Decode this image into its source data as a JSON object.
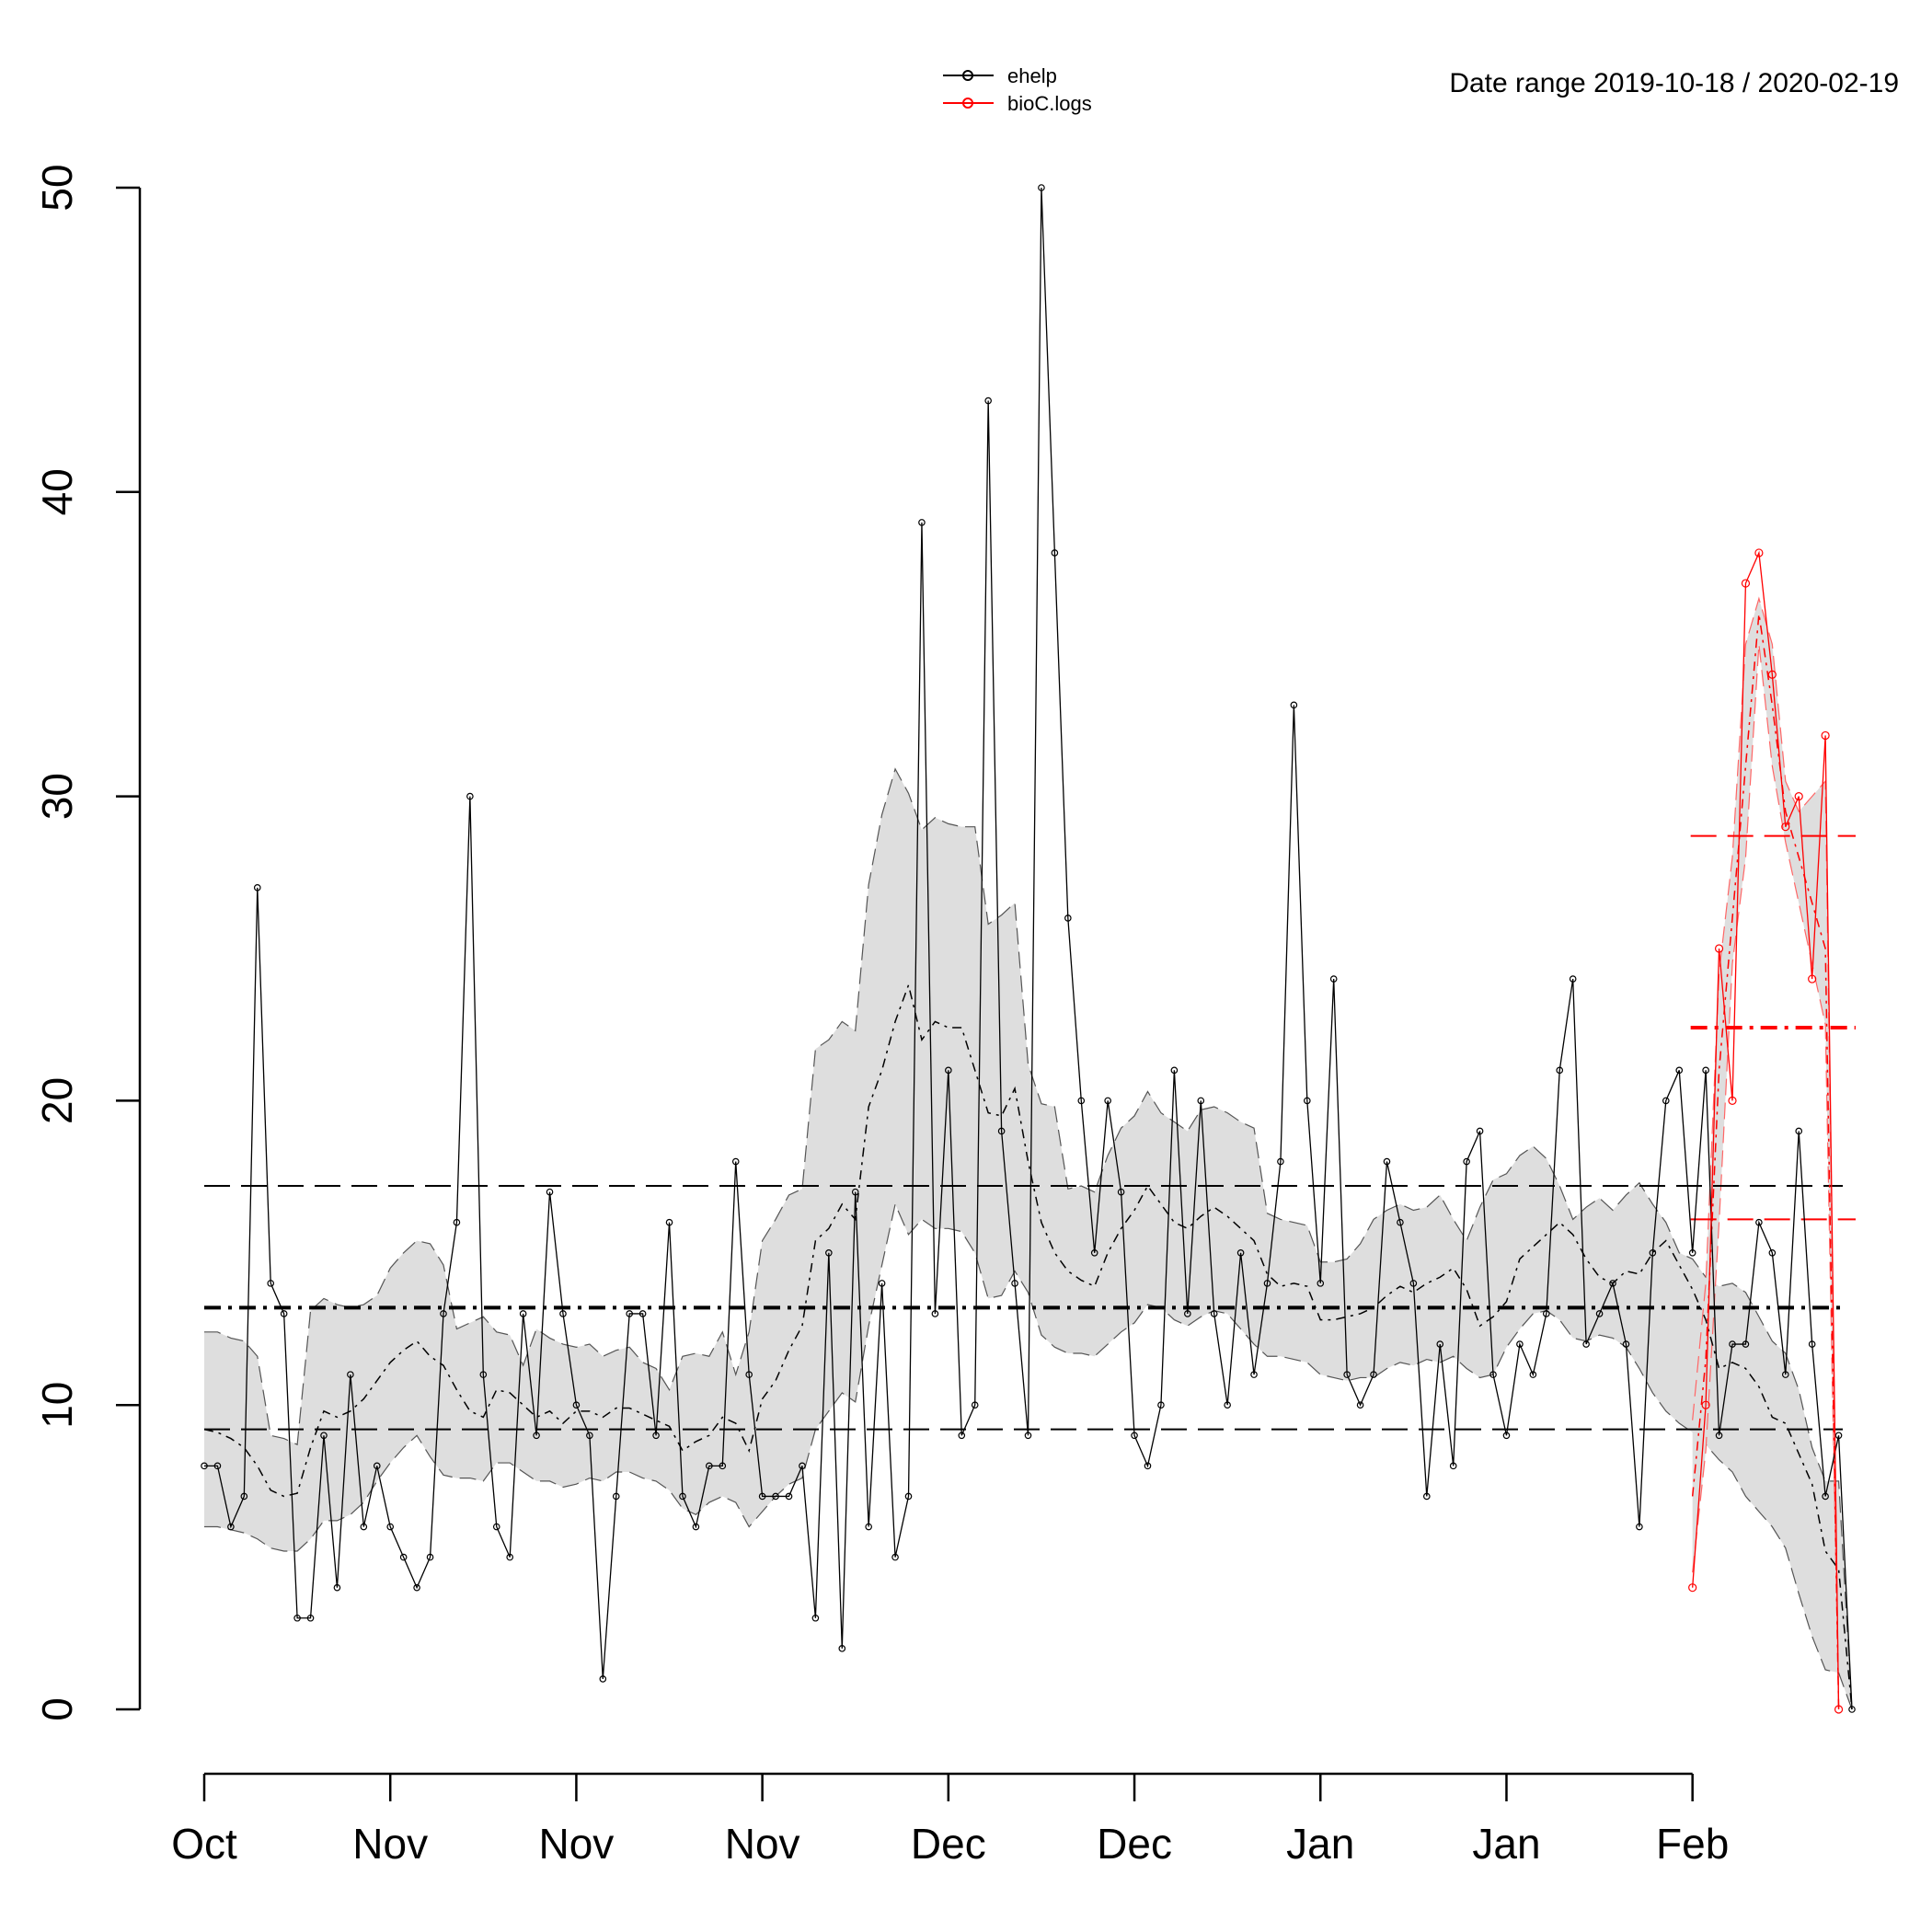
{
  "header": {
    "date_range_label": "Date range  2019-10-18 / 2020-02-19"
  },
  "legend": {
    "placement": "top-center",
    "items": [
      {
        "label": "ehelp",
        "color": "#000000"
      },
      {
        "label": "bioC.logs",
        "color": "#ff0000"
      }
    ]
  },
  "chart_data": {
    "type": "line",
    "title": "",
    "xlabel": "",
    "ylabel": "",
    "ylim": [
      0,
      50
    ],
    "yticks": [
      0,
      10,
      20,
      30,
      40,
      50
    ],
    "x_start": "2019-10-18",
    "x_end": "2020-02-19",
    "xticks": [
      {
        "label": "Oct",
        "date": "2019-10-18"
      },
      {
        "label": "Nov",
        "date": "2019-11-01"
      },
      {
        "label": "Nov",
        "date": "2019-11-15"
      },
      {
        "label": "Nov",
        "date": "2019-11-29"
      },
      {
        "label": "Dec",
        "date": "2019-12-13"
      },
      {
        "label": "Dec",
        "date": "2019-12-27"
      },
      {
        "label": "Jan",
        "date": "2020-01-10"
      },
      {
        "label": "Jan",
        "date": "2020-01-24"
      },
      {
        "label": "Feb",
        "date": "2020-02-07"
      }
    ],
    "grid": false,
    "series": [
      {
        "name": "ehelp",
        "color": "#000000",
        "start_date": "2019-10-18",
        "values": [
          8,
          8,
          6,
          7,
          27,
          14,
          13,
          3,
          3,
          9,
          4,
          11,
          6,
          8,
          6,
          5,
          4,
          5,
          13,
          16,
          30,
          11,
          6,
          5,
          13,
          9,
          17,
          13,
          10,
          9,
          1,
          7,
          13,
          13,
          9,
          16,
          7,
          6,
          8,
          8,
          18,
          11,
          7,
          7,
          7,
          8,
          3,
          15,
          2,
          17,
          6,
          14,
          5,
          7,
          39,
          13,
          21,
          9,
          10,
          43,
          19,
          14,
          9,
          50,
          38,
          26,
          20,
          15,
          20,
          17,
          9,
          8,
          10,
          21,
          13,
          20,
          13,
          10,
          15,
          11,
          14,
          18,
          33,
          20,
          14,
          24,
          11,
          10,
          11,
          18,
          16,
          14,
          7,
          12,
          8,
          18,
          19,
          11,
          9,
          12,
          11,
          13,
          21,
          24,
          12,
          13,
          14,
          12,
          6,
          15,
          20,
          21,
          15,
          21,
          9,
          12,
          12,
          16,
          15,
          11,
          19,
          12,
          7,
          9,
          0
        ],
        "rolling_mean_approx": [
          9.2,
          9.1,
          8.9,
          8.6,
          8.0,
          7.2,
          7.0,
          7.1,
          8.6,
          9.8,
          9.6,
          9.8,
          10.2,
          10.8,
          11.4,
          11.8,
          12.1,
          11.6,
          11.3,
          10.5,
          9.8,
          9.6,
          10.5,
          10.4,
          10.0,
          9.6,
          9.8,
          9.4,
          9.8,
          9.8,
          9.6,
          9.9,
          9.9,
          9.7,
          9.5,
          9.3,
          8.5,
          8.8,
          9.0,
          9.6,
          9.4,
          8.5,
          10.2,
          10.8,
          11.8,
          12.6,
          15.4,
          15.8,
          16.6,
          16.1,
          19.8,
          21.0,
          22.6,
          23.8,
          22.0,
          22.6,
          22.4,
          22.4,
          21.0,
          19.6,
          19.5,
          20.4,
          18.0,
          16.0,
          15.0,
          14.4,
          14.1,
          13.9,
          15.0,
          15.8,
          16.4,
          17.2,
          16.6,
          16.0,
          15.8,
          16.2,
          16.5,
          16.2,
          15.8,
          15.4,
          14.3,
          13.9,
          14.0,
          13.9,
          12.8,
          12.8,
          12.9,
          13.0,
          13.2,
          13.6,
          13.9,
          13.7,
          14.0,
          14.2,
          14.5,
          13.8,
          12.6,
          12.9,
          13.4,
          14.8,
          15.2,
          15.6,
          16.0,
          15.6,
          14.8,
          14.2,
          14.0,
          14.4,
          14.3,
          15.0,
          15.4,
          14.6,
          13.8,
          12.8,
          11.2,
          11.4,
          11.2,
          10.6,
          9.6,
          9.4,
          8.4,
          7.4,
          5.2,
          4.6,
          0
        ],
        "band_upper_approx": [
          12.4,
          12.4,
          12.2,
          12.1,
          11.6,
          9.0,
          8.9,
          8.7,
          13.1,
          13.5,
          13.3,
          13.2,
          13.3,
          13.6,
          14.5,
          15.0,
          15.4,
          15.3,
          14.6,
          12.5,
          12.7,
          12.9,
          12.4,
          12.3,
          11.3,
          12.5,
          12.2,
          12.0,
          11.9,
          12.0,
          11.6,
          11.8,
          11.9,
          11.4,
          11.2,
          10.5,
          11.6,
          11.7,
          11.6,
          12.4,
          11.0,
          12.4,
          15.4,
          16.1,
          16.9,
          17.1,
          21.7,
          22.0,
          22.6,
          22.3,
          27.1,
          29.4,
          30.9,
          30.1,
          28.9,
          29.3,
          29.1,
          29.0,
          29.0,
          25.8,
          26.1,
          26.5,
          21.2,
          19.9,
          19.8,
          17.1,
          17.2,
          17.0,
          18.2,
          19.1,
          19.5,
          20.3,
          19.6,
          19.3,
          19.0,
          19.7,
          19.8,
          19.6,
          19.3,
          19.1,
          16.3,
          16.1,
          16.0,
          15.9,
          14.7,
          14.7,
          14.8,
          15.3,
          16.1,
          16.4,
          16.6,
          16.4,
          16.5,
          16.9,
          16.1,
          15.4,
          16.5,
          17.4,
          17.6,
          18.2,
          18.5,
          18.1,
          17.2,
          16.1,
          16.5,
          16.8,
          16.4,
          16.9,
          17.3,
          16.6,
          16.0,
          15.0,
          14.8,
          14.2,
          13.9,
          14.0,
          13.7,
          12.9,
          12.1,
          11.7,
          10.5,
          8.6,
          7.5,
          7.5,
          0
        ],
        "band_lower_approx": [
          6.0,
          6.0,
          5.9,
          5.8,
          5.6,
          5.3,
          5.2,
          5.2,
          5.6,
          6.2,
          6.2,
          6.4,
          6.8,
          7.5,
          8.1,
          8.6,
          9.0,
          8.3,
          7.7,
          7.6,
          7.6,
          7.5,
          8.1,
          8.1,
          7.8,
          7.5,
          7.5,
          7.3,
          7.4,
          7.6,
          7.5,
          7.8,
          7.8,
          7.6,
          7.5,
          7.2,
          6.6,
          6.4,
          6.8,
          7.0,
          6.8,
          6.0,
          6.5,
          7.0,
          7.4,
          7.6,
          9.2,
          9.8,
          10.4,
          10.1,
          12.6,
          14.6,
          16.6,
          15.6,
          16.1,
          15.8,
          15.8,
          15.7,
          15.0,
          13.5,
          13.6,
          14.4,
          13.7,
          12.3,
          11.9,
          11.7,
          11.7,
          11.6,
          12.0,
          12.4,
          12.7,
          13.3,
          13.2,
          12.8,
          12.6,
          12.9,
          13.1,
          13.0,
          12.5,
          12.0,
          11.6,
          11.6,
          11.5,
          11.4,
          11.0,
          10.9,
          10.8,
          10.9,
          10.9,
          11.2,
          11.4,
          11.3,
          11.5,
          11.4,
          11.6,
          11.2,
          10.9,
          11.0,
          11.9,
          12.5,
          13.0,
          13.1,
          12.8,
          12.2,
          12.1,
          12.3,
          12.2,
          11.9,
          11.2,
          10.4,
          9.8,
          9.4,
          9.1,
          8.7,
          8.2,
          7.8,
          7.0,
          6.5,
          6.0,
          5.3,
          3.8,
          2.4,
          1.3,
          1.2,
          0
        ],
        "overall_mean": 13.2,
        "band_upper_ref": 17.2,
        "band_lower_ref": 9.2
      },
      {
        "name": "bioC.logs",
        "color": "#ff0000",
        "start_date": "2020-02-07",
        "values": [
          4,
          10,
          25,
          20,
          37,
          38,
          34,
          29,
          30,
          24,
          32,
          0
        ],
        "rolling_mean_approx": [
          7.0,
          11.5,
          21.0,
          26.0,
          31.0,
          36.0,
          33.0,
          29.5,
          28.0,
          26.5,
          25.0,
          0
        ],
        "band_upper_approx": [
          9.5,
          14.0,
          24.2,
          28.0,
          35.0,
          36.5,
          35.0,
          30.5,
          29.5,
          30.0,
          30.5,
          0
        ],
        "band_lower_approx": [
          4.5,
          8.5,
          16.0,
          24.5,
          28.0,
          35.0,
          31.0,
          28.5,
          26.5,
          24.5,
          22.5,
          0
        ],
        "overall_mean": 22.4,
        "band_upper_ref": 28.7,
        "band_lower_ref": 16.1
      }
    ]
  }
}
